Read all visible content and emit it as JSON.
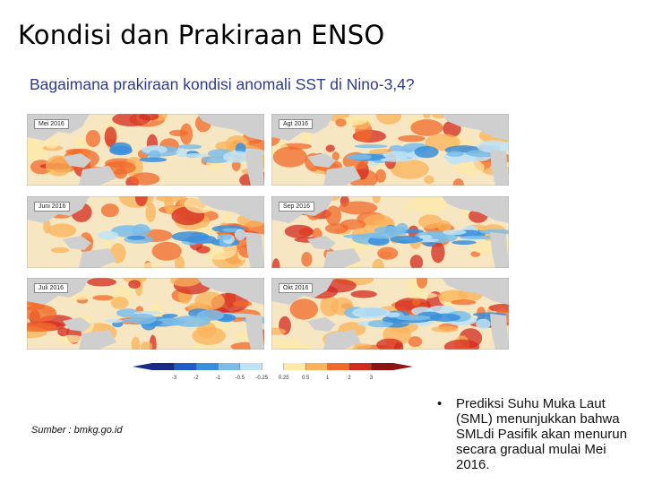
{
  "slide": {
    "title": "Kondisi dan Prakiraan ENSO",
    "subtitle": "Bagaimana prakiraan kondisi anomali SST di Nino-3,4?"
  },
  "maps": [
    {
      "label": "Mei 2016",
      "icon": "sst-anomaly-map"
    },
    {
      "label": "Agt 2016",
      "icon": "sst-anomaly-map"
    },
    {
      "label": "Juni 2016",
      "icon": "sst-anomaly-map"
    },
    {
      "label": "Sep 2016",
      "icon": "sst-anomaly-map"
    },
    {
      "label": "Juli 2016",
      "icon": "sst-anomaly-map"
    },
    {
      "label": "Okt 2016",
      "icon": "sst-anomaly-map"
    }
  ],
  "colorbar": {
    "ticks": [
      "-3",
      "-2",
      "-1",
      "-0.5",
      "-0.25",
      "0.25",
      "0.5",
      "1",
      "2",
      "3"
    ],
    "colors": [
      "#1b2a86",
      "#1f5cc8",
      "#3a8fdc",
      "#7cbde8",
      "#bfe3f4",
      "#ffffff",
      "#fde9a8",
      "#f9b35a",
      "#f06a2a",
      "#d42a1e",
      "#8e1414"
    ]
  },
  "source": "Sumber : bmkg.go.id",
  "bullets": [
    {
      "marker": "•",
      "text": "Prediksi Suhu Muka Laut (SML) menunjukkan bahwa SMLdi Pasifik akan menurun secara gradual mulai Mei 2016."
    }
  ]
}
